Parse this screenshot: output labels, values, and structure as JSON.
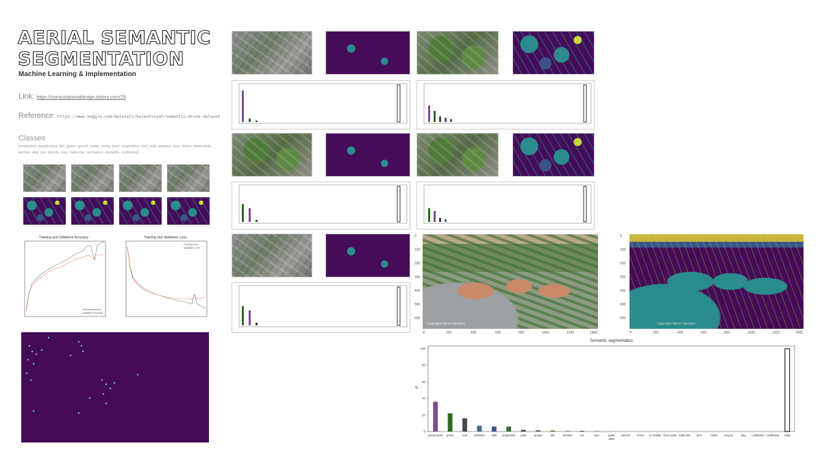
{
  "header": {
    "title_line1": "AERIAL SEMANTIC",
    "title_line2": "SEGMENTATION",
    "subtitle": "Machine Learning & Implementation"
  },
  "link": {
    "label": "Link:",
    "url": "https://computationaldesign.tistory.com/29"
  },
  "reference": {
    "label": "Reference:",
    "url": "https://www.kaggle.com/datasets/bulentsiyah/semantic-drone-dataset"
  },
  "classes": {
    "heading": "Classes",
    "list": "[unlabeled, paved-area, dirt, grass, gravel, water, rocks, pool, vegetation, roof, wall, window, door, fence, fence-pole, person, dog, car, bicycle, tree, bald-tree, ar-marker, obstacle, conflicting]"
  },
  "training_plots": {
    "accuracy_title": "Training and Validation Accuracy",
    "loss_title": "Training and Validation Loss",
    "acc_legend": [
      "Training Accuracy",
      "Validation Accuracy"
    ],
    "loss_legend": [
      "Training Loss",
      "Validation Loss"
    ]
  },
  "small_chart_title": "semantic segmentation",
  "main_figure": {
    "left_yticks": [
      "0",
      "100",
      "200",
      "300",
      "400",
      "500",
      "600"
    ],
    "right_yticks": [
      "0",
      "100",
      "200",
      "300",
      "400",
      "500",
      "600"
    ],
    "xticks": [
      "0",
      "200",
      "400",
      "600",
      "800",
      "1000",
      "1200",
      "1400"
    ],
    "watermark_left": "Copyright Mirror Sanders",
    "watermark_right": "Copyright Mirror Sanders"
  },
  "chart_data": {
    "type": "bar",
    "title": "Semantic segmentation",
    "ylabel": "%",
    "xlabel": "",
    "ylim": [
      0,
      100
    ],
    "yticks": [
      0,
      20,
      40,
      60,
      80,
      100
    ],
    "categories": [
      "paved-area",
      "grass",
      "roof",
      "obstacle",
      "wall",
      "vegetation",
      "pool",
      "gravel",
      "dirt",
      "window",
      "car",
      "tree",
      "water\nclass",
      "person",
      "fence",
      "ar-marker",
      "fence-pole",
      "bald-tree",
      "door",
      "rocks",
      "bicycle",
      "dog",
      "unlabeled",
      "conflicting",
      "total"
    ],
    "values": [
      36,
      22,
      16,
      7,
      6,
      6,
      2,
      1.5,
      1.2,
      0.8,
      0.7,
      0.5,
      0.3,
      0.2,
      0.1,
      0.1,
      0.1,
      0.1,
      0,
      0,
      0,
      0,
      0,
      0,
      100
    ],
    "colors": [
      "#7b4f8e",
      "#2f6b1e",
      "#4a4a4a",
      "#3d6e8c",
      "#3b528b",
      "#3c6e3c",
      "#444444",
      "#5a5a5a",
      "#6b6b3b",
      "#888888",
      "#333333",
      "#556b2f",
      "#777777",
      "#999999",
      "#aaaaaa",
      "#aaaaaa",
      "#aaaaaa",
      "#aaaaaa",
      "#aaaaaa",
      "#aaaaaa",
      "#aaaaaa",
      "#aaaaaa",
      "#aaaaaa",
      "#aaaaaa",
      "#ffffff"
    ],
    "grid": false,
    "legend": "none"
  }
}
